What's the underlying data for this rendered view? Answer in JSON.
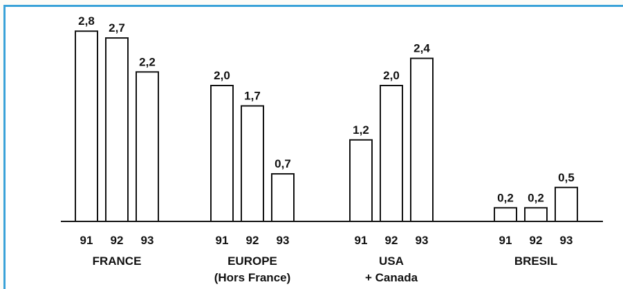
{
  "chart_data": {
    "type": "bar",
    "title": "",
    "xlabel": "",
    "ylabel": "",
    "ylim": [
      0,
      2.8
    ],
    "grid": false,
    "legend": "none",
    "value_format": "comma-decimal",
    "groups": [
      {
        "name_lines": [
          "FRANCE"
        ],
        "years": [
          "91",
          "92",
          "93"
        ],
        "values": [
          2.8,
          2.7,
          2.2
        ],
        "labels": [
          "2,8",
          "2,7",
          "2,2"
        ]
      },
      {
        "name_lines": [
          "EUROPE",
          "(Hors France)"
        ],
        "years": [
          "91",
          "92",
          "93"
        ],
        "values": [
          2.0,
          1.7,
          0.7
        ],
        "labels": [
          "2,0",
          "1,7",
          "0,7"
        ]
      },
      {
        "name_lines": [
          "USA",
          "+ Canada"
        ],
        "years": [
          "91",
          "92",
          "93"
        ],
        "values": [
          1.2,
          2.0,
          2.4
        ],
        "labels": [
          "1,2",
          "2,0",
          "2,4"
        ]
      },
      {
        "name_lines": [
          "BRESIL"
        ],
        "years": [
          "91",
          "92",
          "93"
        ],
        "values": [
          0.2,
          0.2,
          0.5
        ],
        "labels": [
          "0,2",
          "0,2",
          "0,5"
        ]
      }
    ],
    "colors": {
      "bar_fill": "#ffffff",
      "bar_stroke": "#111111",
      "frame": "#3aa2d8"
    }
  }
}
